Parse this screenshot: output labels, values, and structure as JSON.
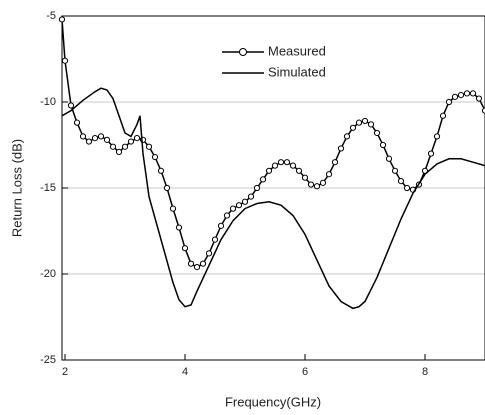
{
  "chart_data": {
    "type": "line",
    "x_label": "Frequency(GHz)",
    "y_label": "Return Loss (dB)",
    "xlim": [
      1.95,
      9.0
    ],
    "xticks": [
      2,
      4,
      6,
      8
    ],
    "ylim": [
      -25,
      -5
    ],
    "yticks": [
      -5,
      -10,
      -15,
      -20,
      -25
    ],
    "grid": true,
    "legend": "top",
    "series": [
      {
        "name": "Measured",
        "color": "#000000",
        "marker": "circle",
        "x": [
          1.95,
          2.0,
          2.1,
          2.2,
          2.3,
          2.4,
          2.5,
          2.6,
          2.7,
          2.8,
          2.9,
          3.0,
          3.1,
          3.2,
          3.3,
          3.4,
          3.5,
          3.6,
          3.7,
          3.8,
          3.9,
          4.0,
          4.1,
          4.2,
          4.3,
          4.4,
          4.5,
          4.6,
          4.7,
          4.8,
          4.9,
          5.0,
          5.1,
          5.2,
          5.3,
          5.4,
          5.5,
          5.6,
          5.7,
          5.8,
          5.9,
          6.0,
          6.1,
          6.2,
          6.3,
          6.4,
          6.5,
          6.6,
          6.7,
          6.8,
          6.9,
          7.0,
          7.1,
          7.2,
          7.3,
          7.4,
          7.5,
          7.6,
          7.7,
          7.8,
          7.9,
          8.0,
          8.1,
          8.2,
          8.3,
          8.4,
          8.5,
          8.6,
          8.7,
          8.8,
          8.9,
          9.0
        ],
        "values": [
          -5.2,
          -7.6,
          -10.2,
          -11.2,
          -12.0,
          -12.3,
          -12.1,
          -12.0,
          -12.2,
          -12.6,
          -12.9,
          -12.6,
          -12.3,
          -12.1,
          -12.2,
          -12.6,
          -13.2,
          -14.0,
          -15.0,
          -16.2,
          -17.3,
          -18.5,
          -19.4,
          -19.6,
          -19.4,
          -18.8,
          -18.0,
          -17.2,
          -16.6,
          -16.2,
          -16.0,
          -15.8,
          -15.5,
          -15.0,
          -14.5,
          -14.0,
          -13.7,
          -13.5,
          -13.5,
          -13.7,
          -14.0,
          -14.4,
          -14.8,
          -14.9,
          -14.7,
          -14.2,
          -13.5,
          -12.7,
          -12.0,
          -11.5,
          -11.2,
          -11.1,
          -11.3,
          -11.8,
          -12.5,
          -13.3,
          -14.0,
          -14.6,
          -15.0,
          -15.1,
          -14.8,
          -14.0,
          -13.0,
          -12.0,
          -10.8,
          -10.0,
          -9.7,
          -9.6,
          -9.5,
          -9.5,
          -9.8,
          -10.5
        ]
      },
      {
        "name": "Simulated",
        "color": "#000000",
        "marker": "none",
        "x": [
          1.95,
          2.1,
          2.3,
          2.5,
          2.6,
          2.7,
          2.8,
          2.9,
          3.0,
          3.1,
          3.2,
          3.25,
          3.3,
          3.4,
          3.6,
          3.8,
          3.9,
          4.0,
          4.1,
          4.2,
          4.4,
          4.6,
          4.8,
          5.0,
          5.2,
          5.4,
          5.6,
          5.8,
          6.0,
          6.2,
          6.4,
          6.6,
          6.8,
          6.9,
          7.0,
          7.2,
          7.4,
          7.6,
          7.8,
          8.0,
          8.2,
          8.4,
          8.6,
          8.8,
          9.0
        ],
        "values": [
          -10.8,
          -10.5,
          -9.9,
          -9.4,
          -9.2,
          -9.3,
          -9.8,
          -10.8,
          -11.8,
          -12.0,
          -11.3,
          -10.8,
          -13.0,
          -15.5,
          -18.0,
          -20.5,
          -21.5,
          -21.9,
          -21.8,
          -21.0,
          -19.5,
          -18.0,
          -16.9,
          -16.2,
          -15.9,
          -15.8,
          -16.0,
          -16.6,
          -17.7,
          -19.2,
          -20.7,
          -21.6,
          -22.0,
          -21.9,
          -21.6,
          -20.2,
          -18.5,
          -16.8,
          -15.3,
          -14.2,
          -13.6,
          -13.3,
          -13.3,
          -13.5,
          -13.7
        ]
      }
    ]
  }
}
